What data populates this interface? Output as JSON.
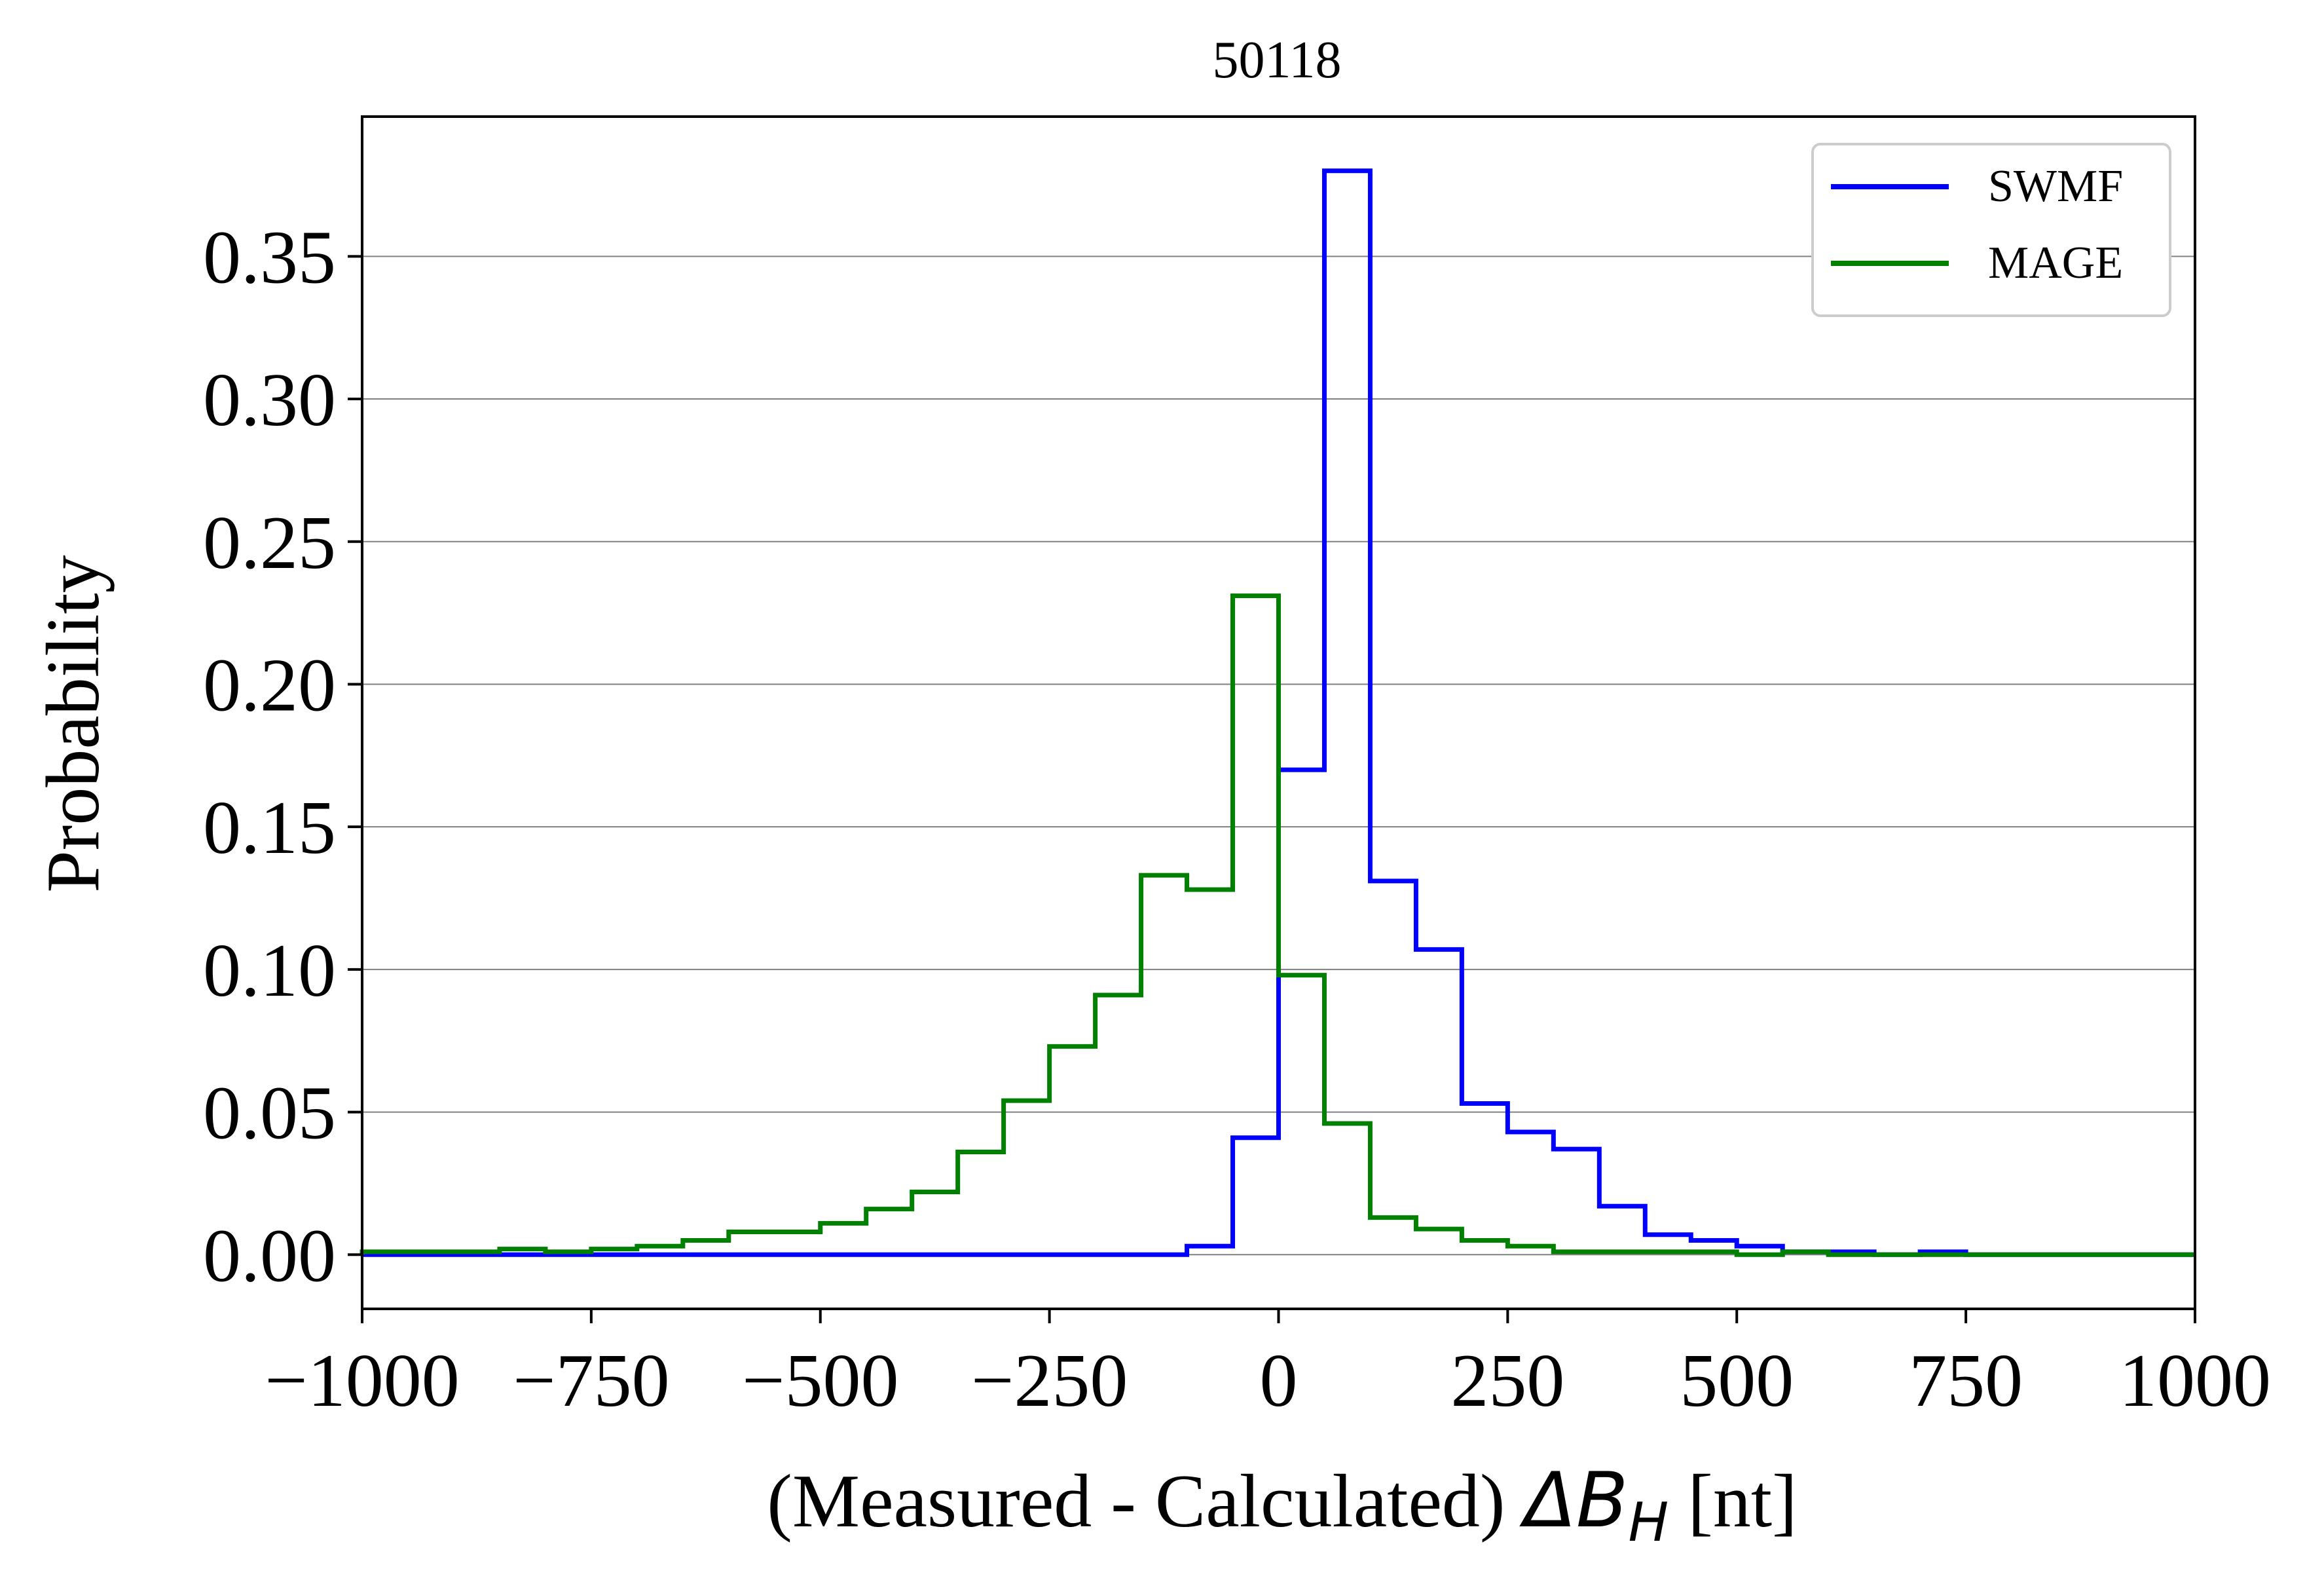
{
  "chart_data": {
    "type": "line",
    "title": "50118",
    "xlabel": {
      "prefix": "(Measured - Calculated) ",
      "delta": "Δ",
      "symbol": "B",
      "subscript": "H",
      "suffix": " [nt]"
    },
    "ylabel": "Probability",
    "xlim": [
      -1000,
      1000
    ],
    "ylim": [
      -0.019,
      0.399
    ],
    "xticks": [
      -1000,
      -750,
      -500,
      -250,
      0,
      250,
      500,
      750,
      1000
    ],
    "xtick_labels": [
      "−1000",
      "−750",
      "−500",
      "−250",
      "0",
      "250",
      "500",
      "750",
      "1000"
    ],
    "yticks": [
      0.0,
      0.05,
      0.1,
      0.15,
      0.2,
      0.25,
      0.3,
      0.35
    ],
    "ytick_labels": [
      "0.00",
      "0.05",
      "0.10",
      "0.15",
      "0.20",
      "0.25",
      "0.30",
      "0.35"
    ],
    "grid": "horizontal",
    "legend_position": "top-right",
    "bin_edges": [
      -1000,
      -950,
      -900,
      -850,
      -800,
      -750,
      -700,
      -650,
      -600,
      -550,
      -500,
      -450,
      -400,
      -350,
      -300,
      -250,
      -200,
      -150,
      -100,
      -50,
      0,
      50,
      100,
      150,
      200,
      250,
      300,
      350,
      400,
      450,
      500,
      550,
      600,
      650,
      700,
      750,
      800,
      850,
      900,
      950,
      1000
    ],
    "series": [
      {
        "name": "SWMF",
        "color": "#0000ff",
        "values": [
          0,
          0,
          0,
          0,
          0,
          0,
          0,
          0,
          0,
          0,
          0,
          0,
          0,
          0,
          0,
          0,
          0,
          0,
          0.003,
          0.041,
          0.17,
          0.38,
          0.131,
          0.107,
          0.053,
          0.043,
          0.037,
          0.017,
          0.007,
          0.005,
          0.003,
          0.001,
          0.001,
          0,
          0.001,
          0,
          0,
          0,
          0,
          0
        ]
      },
      {
        "name": "MAGE",
        "color": "#008000",
        "values": [
          0.001,
          0.001,
          0.001,
          0.002,
          0.001,
          0.002,
          0.003,
          0.005,
          0.008,
          0.008,
          0.011,
          0.016,
          0.022,
          0.036,
          0.054,
          0.073,
          0.091,
          0.133,
          0.128,
          0.231,
          0.098,
          0.046,
          0.013,
          0.009,
          0.005,
          0.003,
          0.001,
          0.001,
          0.001,
          0.001,
          0,
          0.001,
          0,
          0,
          0,
          0,
          0,
          0,
          0,
          0
        ]
      }
    ]
  }
}
